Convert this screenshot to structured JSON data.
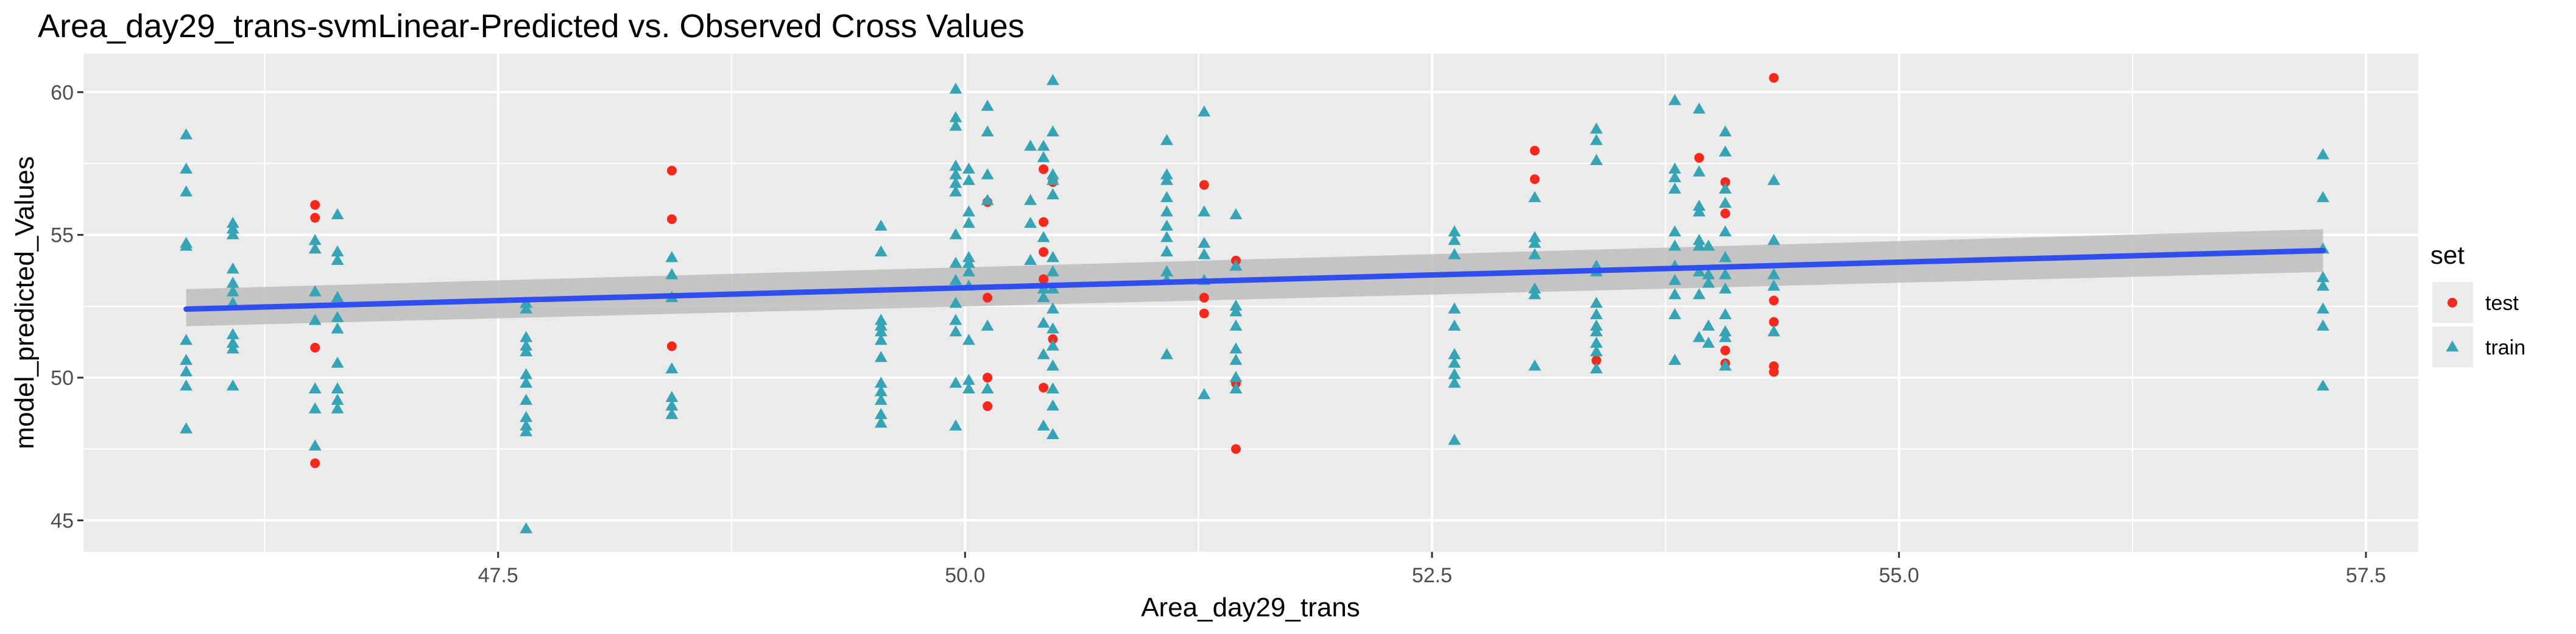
{
  "chart_data": {
    "type": "scatter",
    "title": "Area_day29_trans-svmLinear-Predicted vs. Observed Cross Values",
    "xlabel": "Area_day29_trans",
    "ylabel": "model_predicted_Values",
    "xlim": [
      45.28,
      57.78
    ],
    "ylim": [
      43.9,
      61.35
    ],
    "x_ticks": [
      47.5,
      50.0,
      52.5,
      55.0,
      57.5
    ],
    "x_tick_labels": [
      "47.5",
      "50.0",
      "52.5",
      "55.0",
      "57.5"
    ],
    "y_ticks": [
      45,
      50,
      55,
      60
    ],
    "y_tick_labels": [
      "45",
      "50",
      "55",
      "60"
    ],
    "grid": true,
    "legend": {
      "title": "set",
      "position": "right",
      "entries": [
        {
          "label": "test",
          "color": "#F8291C",
          "shape": "circle"
        },
        {
          "label": "train",
          "color": "#36A4B5",
          "shape": "triangle"
        }
      ]
    },
    "colors": {
      "test": "#F8291C",
      "train": "#36A4B5",
      "fit_line": "#2F4EF0",
      "ribbon": "#BDBDBD",
      "panel": "#EBEBEB"
    },
    "fit_line": {
      "x": [
        45.83,
        57.27
      ],
      "y": [
        52.4,
        54.45
      ],
      "ci_low": [
        51.8,
        53.7
      ],
      "ci_high": [
        53.1,
        55.2
      ]
    },
    "series": [
      {
        "name": "test",
        "points": [
          [
            46.52,
            56.05
          ],
          [
            46.52,
            55.6
          ],
          [
            46.52,
            51.05
          ],
          [
            46.52,
            47.0
          ],
          [
            48.43,
            57.25
          ],
          [
            48.43,
            55.55
          ],
          [
            48.43,
            51.1
          ],
          [
            50.12,
            56.15
          ],
          [
            50.12,
            52.8
          ],
          [
            50.12,
            50.0
          ],
          [
            50.12,
            49.0
          ],
          [
            50.42,
            57.3
          ],
          [
            50.42,
            55.45
          ],
          [
            50.42,
            54.4
          ],
          [
            50.42,
            53.45
          ],
          [
            50.42,
            49.65
          ],
          [
            50.47,
            56.85
          ],
          [
            50.47,
            51.35
          ],
          [
            51.28,
            56.75
          ],
          [
            51.28,
            52.8
          ],
          [
            51.28,
            52.25
          ],
          [
            51.45,
            54.1
          ],
          [
            51.45,
            49.8
          ],
          [
            51.45,
            47.5
          ],
          [
            53.05,
            57.95
          ],
          [
            53.05,
            56.95
          ],
          [
            53.38,
            50.6
          ],
          [
            53.93,
            57.7
          ],
          [
            54.07,
            56.85
          ],
          [
            54.07,
            55.75
          ],
          [
            54.07,
            50.95
          ],
          [
            54.07,
            50.5
          ],
          [
            54.33,
            60.5
          ],
          [
            54.33,
            52.7
          ],
          [
            54.33,
            51.95
          ],
          [
            54.33,
            50.4
          ],
          [
            54.33,
            50.2
          ]
        ]
      },
      {
        "name": "train",
        "points": [
          [
            45.83,
            58.5
          ],
          [
            45.83,
            57.3
          ],
          [
            45.83,
            56.5
          ],
          [
            45.83,
            54.7
          ],
          [
            45.83,
            54.6
          ],
          [
            45.83,
            51.3
          ],
          [
            45.83,
            50.6
          ],
          [
            45.83,
            50.2
          ],
          [
            45.83,
            49.7
          ],
          [
            45.83,
            48.2
          ],
          [
            46.08,
            55.4
          ],
          [
            46.08,
            55.2
          ],
          [
            46.08,
            55.0
          ],
          [
            46.08,
            53.8
          ],
          [
            46.08,
            53.3
          ],
          [
            46.08,
            53.0
          ],
          [
            46.08,
            52.6
          ],
          [
            46.08,
            51.5
          ],
          [
            46.08,
            51.2
          ],
          [
            46.08,
            51.0
          ],
          [
            46.08,
            49.7
          ],
          [
            46.52,
            54.8
          ],
          [
            46.52,
            54.5
          ],
          [
            46.52,
            53.0
          ],
          [
            46.52,
            52.0
          ],
          [
            46.52,
            49.6
          ],
          [
            46.52,
            48.9
          ],
          [
            46.52,
            47.6
          ],
          [
            46.64,
            55.7
          ],
          [
            46.64,
            54.4
          ],
          [
            46.64,
            54.1
          ],
          [
            46.64,
            52.8
          ],
          [
            46.64,
            52.1
          ],
          [
            46.64,
            51.7
          ],
          [
            46.64,
            50.5
          ],
          [
            46.64,
            49.6
          ],
          [
            46.64,
            49.2
          ],
          [
            46.64,
            48.9
          ],
          [
            47.65,
            52.6
          ],
          [
            47.65,
            52.4
          ],
          [
            47.65,
            51.4
          ],
          [
            47.65,
            51.1
          ],
          [
            47.65,
            50.9
          ],
          [
            47.65,
            50.1
          ],
          [
            47.65,
            49.8
          ],
          [
            47.65,
            49.2
          ],
          [
            47.65,
            48.6
          ],
          [
            47.65,
            48.3
          ],
          [
            47.65,
            48.1
          ],
          [
            47.65,
            44.7
          ],
          [
            48.43,
            54.2
          ],
          [
            48.43,
            53.6
          ],
          [
            48.43,
            52.8
          ],
          [
            48.43,
            50.3
          ],
          [
            48.43,
            49.3
          ],
          [
            48.43,
            49.0
          ],
          [
            48.43,
            48.7
          ],
          [
            49.55,
            55.3
          ],
          [
            49.55,
            54.4
          ],
          [
            49.55,
            52.0
          ],
          [
            49.55,
            51.8
          ],
          [
            49.55,
            51.6
          ],
          [
            49.55,
            51.3
          ],
          [
            49.55,
            50.7
          ],
          [
            49.55,
            49.8
          ],
          [
            49.55,
            49.5
          ],
          [
            49.55,
            49.2
          ],
          [
            49.55,
            48.7
          ],
          [
            49.55,
            48.4
          ],
          [
            49.95,
            60.1
          ],
          [
            49.95,
            59.1
          ],
          [
            49.95,
            58.8
          ],
          [
            49.95,
            57.4
          ],
          [
            49.95,
            57.1
          ],
          [
            49.95,
            56.8
          ],
          [
            49.95,
            56.5
          ],
          [
            49.95,
            55.0
          ],
          [
            49.95,
            54.0
          ],
          [
            49.95,
            53.4
          ],
          [
            49.95,
            52.6
          ],
          [
            49.95,
            52.0
          ],
          [
            49.95,
            51.6
          ],
          [
            49.95,
            49.8
          ],
          [
            49.95,
            48.3
          ],
          [
            50.02,
            57.3
          ],
          [
            50.02,
            56.9
          ],
          [
            50.02,
            55.8
          ],
          [
            50.02,
            55.4
          ],
          [
            50.02,
            54.2
          ],
          [
            50.02,
            54.0
          ],
          [
            50.02,
            53.7
          ],
          [
            50.02,
            53.2
          ],
          [
            50.02,
            51.3
          ],
          [
            50.02,
            49.9
          ],
          [
            50.02,
            49.6
          ],
          [
            50.12,
            59.5
          ],
          [
            50.12,
            58.6
          ],
          [
            50.12,
            57.1
          ],
          [
            50.12,
            56.2
          ],
          [
            50.12,
            51.8
          ],
          [
            50.12,
            49.6
          ],
          [
            50.35,
            58.1
          ],
          [
            50.35,
            56.2
          ],
          [
            50.35,
            55.4
          ],
          [
            50.35,
            54.1
          ],
          [
            50.42,
            58.1
          ],
          [
            50.42,
            57.7
          ],
          [
            50.42,
            54.9
          ],
          [
            50.42,
            53.1
          ],
          [
            50.42,
            52.8
          ],
          [
            50.42,
            51.9
          ],
          [
            50.42,
            50.8
          ],
          [
            50.42,
            48.3
          ],
          [
            50.47,
            60.4
          ],
          [
            50.47,
            58.6
          ],
          [
            50.47,
            57.1
          ],
          [
            50.47,
            56.9
          ],
          [
            50.47,
            56.4
          ],
          [
            50.47,
            54.2
          ],
          [
            50.47,
            53.7
          ],
          [
            50.47,
            53.1
          ],
          [
            50.47,
            52.4
          ],
          [
            50.47,
            51.7
          ],
          [
            50.47,
            51.1
          ],
          [
            50.47,
            50.4
          ],
          [
            50.47,
            49.6
          ],
          [
            50.47,
            49.0
          ],
          [
            50.47,
            48.0
          ],
          [
            51.08,
            58.3
          ],
          [
            51.08,
            57.1
          ],
          [
            51.08,
            56.9
          ],
          [
            51.08,
            56.3
          ],
          [
            51.08,
            55.8
          ],
          [
            51.08,
            55.3
          ],
          [
            51.08,
            54.9
          ],
          [
            51.08,
            54.4
          ],
          [
            51.08,
            53.7
          ],
          [
            51.08,
            53.4
          ],
          [
            51.08,
            50.8
          ],
          [
            51.28,
            59.3
          ],
          [
            51.28,
            55.8
          ],
          [
            51.28,
            54.7
          ],
          [
            51.28,
            54.3
          ],
          [
            51.28,
            53.4
          ],
          [
            51.28,
            49.4
          ],
          [
            51.45,
            55.7
          ],
          [
            51.45,
            53.9
          ],
          [
            51.45,
            52.5
          ],
          [
            51.45,
            52.3
          ],
          [
            51.45,
            51.8
          ],
          [
            51.45,
            51.0
          ],
          [
            51.45,
            50.6
          ],
          [
            51.45,
            50.0
          ],
          [
            51.45,
            49.6
          ],
          [
            52.62,
            55.1
          ],
          [
            52.62,
            54.8
          ],
          [
            52.62,
            54.3
          ],
          [
            52.62,
            52.4
          ],
          [
            52.62,
            51.8
          ],
          [
            52.62,
            50.8
          ],
          [
            52.62,
            50.5
          ],
          [
            52.62,
            50.1
          ],
          [
            52.62,
            49.8
          ],
          [
            52.62,
            47.8
          ],
          [
            53.05,
            56.3
          ],
          [
            53.05,
            54.9
          ],
          [
            53.05,
            54.7
          ],
          [
            53.05,
            54.3
          ],
          [
            53.05,
            53.1
          ],
          [
            53.05,
            52.9
          ],
          [
            53.05,
            50.4
          ],
          [
            53.38,
            58.7
          ],
          [
            53.38,
            58.3
          ],
          [
            53.38,
            57.6
          ],
          [
            53.38,
            53.9
          ],
          [
            53.38,
            53.7
          ],
          [
            53.38,
            52.6
          ],
          [
            53.38,
            52.2
          ],
          [
            53.38,
            51.8
          ],
          [
            53.38,
            51.6
          ],
          [
            53.38,
            51.2
          ],
          [
            53.38,
            50.9
          ],
          [
            53.38,
            50.3
          ],
          [
            53.8,
            59.7
          ],
          [
            53.8,
            57.3
          ],
          [
            53.8,
            57.0
          ],
          [
            53.8,
            56.6
          ],
          [
            53.8,
            55.1
          ],
          [
            53.8,
            54.6
          ],
          [
            53.8,
            53.9
          ],
          [
            53.8,
            53.4
          ],
          [
            53.8,
            52.9
          ],
          [
            53.8,
            52.2
          ],
          [
            53.8,
            50.6
          ],
          [
            53.93,
            59.4
          ],
          [
            53.93,
            57.2
          ],
          [
            53.93,
            56.0
          ],
          [
            53.93,
            55.8
          ],
          [
            53.93,
            54.8
          ],
          [
            53.93,
            54.6
          ],
          [
            53.93,
            53.7
          ],
          [
            53.93,
            52.9
          ],
          [
            53.93,
            51.4
          ],
          [
            53.98,
            54.6
          ],
          [
            53.98,
            53.6
          ],
          [
            53.98,
            53.3
          ],
          [
            53.98,
            51.8
          ],
          [
            53.98,
            51.2
          ],
          [
            54.07,
            58.6
          ],
          [
            54.07,
            57.9
          ],
          [
            54.07,
            56.6
          ],
          [
            54.07,
            56.1
          ],
          [
            54.07,
            55.1
          ],
          [
            54.07,
            54.2
          ],
          [
            54.07,
            53.6
          ],
          [
            54.07,
            53.1
          ],
          [
            54.07,
            52.2
          ],
          [
            54.07,
            51.6
          ],
          [
            54.07,
            51.4
          ],
          [
            54.07,
            50.4
          ],
          [
            54.33,
            56.9
          ],
          [
            54.33,
            54.8
          ],
          [
            54.33,
            53.6
          ],
          [
            54.33,
            53.2
          ],
          [
            54.33,
            51.6
          ],
          [
            57.27,
            57.8
          ],
          [
            57.27,
            56.3
          ],
          [
            57.27,
            54.5
          ],
          [
            57.27,
            53.5
          ],
          [
            57.27,
            53.2
          ],
          [
            57.27,
            52.4
          ],
          [
            57.27,
            51.8
          ],
          [
            57.27,
            49.7
          ]
        ]
      }
    ]
  }
}
